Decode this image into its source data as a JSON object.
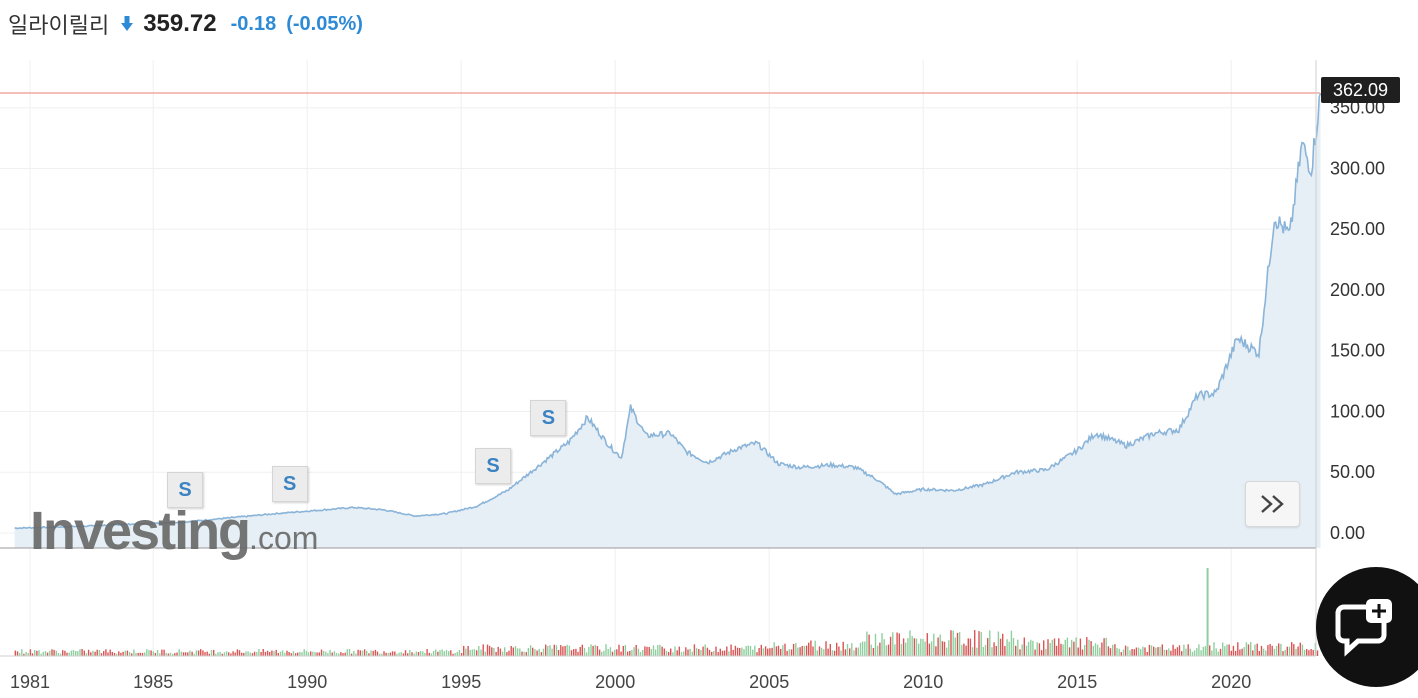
{
  "header": {
    "name": "일라이릴리",
    "price": "359.72",
    "change": "-0.18",
    "change_pct": "(-0.05%)"
  },
  "last_price_tag": "362.09",
  "watermark": {
    "brand": "Investing",
    "suffix": ".com"
  },
  "split_flags": [
    {
      "label": "S",
      "year": 1986.0
    },
    {
      "label": "S",
      "year": 1989.4
    },
    {
      "label": "S",
      "year": 1996.0
    },
    {
      "label": "S",
      "year": 1997.8
    }
  ],
  "colors": {
    "line": "#8ab4d8",
    "fill": "#e6eef6",
    "last_price_line": "#f0a8a0",
    "volume_up": "#8fcf9f",
    "volume_down": "#d95555",
    "change": "#2d8ad6"
  },
  "icons": [
    "down-arrow-icon",
    "double-chevron-right-icon",
    "chat-add-icon"
  ],
  "chart_data": {
    "type": "area",
    "x_ticks": [
      "1981",
      "1985",
      "1990",
      "1995",
      "2000",
      "2005",
      "2010",
      "2015",
      "2020"
    ],
    "y_ticks": [
      "0.00",
      "50.00",
      "100.00",
      "150.00",
      "200.00",
      "250.00",
      "300.00",
      "350.00"
    ],
    "ylim": [
      0,
      362.09
    ],
    "xlim": [
      1980.5,
      2022.9
    ],
    "grid": true,
    "last_price": 362.09,
    "price_series": [
      [
        1980.5,
        4
      ],
      [
        1982,
        5
      ],
      [
        1984,
        7
      ],
      [
        1986,
        9
      ],
      [
        1987.7,
        13
      ],
      [
        1989,
        16
      ],
      [
        1990,
        18
      ],
      [
        1991.5,
        21
      ],
      [
        1992.5,
        19
      ],
      [
        1993.5,
        14
      ],
      [
        1994.5,
        16
      ],
      [
        1995.5,
        22
      ],
      [
        1996.5,
        35
      ],
      [
        1997.5,
        55
      ],
      [
        1998.5,
        75
      ],
      [
        1999.1,
        95
      ],
      [
        1999.8,
        72
      ],
      [
        2000.2,
        62
      ],
      [
        2000.5,
        103
      ],
      [
        2001,
        80
      ],
      [
        2001.8,
        82
      ],
      [
        2002.3,
        67
      ],
      [
        2003,
        58
      ],
      [
        2004,
        70
      ],
      [
        2004.6,
        74
      ],
      [
        2005.3,
        57
      ],
      [
        2006,
        54
      ],
      [
        2007,
        56
      ],
      [
        2007.8,
        54
      ],
      [
        2008.5,
        44
      ],
      [
        2009.1,
        32
      ],
      [
        2010,
        36
      ],
      [
        2011,
        35
      ],
      [
        2012,
        40
      ],
      [
        2013,
        50
      ],
      [
        2014,
        52
      ],
      [
        2015,
        68
      ],
      [
        2015.6,
        82
      ],
      [
        2016.6,
        72
      ],
      [
        2017.5,
        82
      ],
      [
        2018.3,
        85
      ],
      [
        2018.9,
        113
      ],
      [
        2019.5,
        115
      ],
      [
        2020.2,
        160
      ],
      [
        2020.9,
        148
      ],
      [
        2021.4,
        260
      ],
      [
        2021.9,
        245
      ],
      [
        2022.3,
        320
      ],
      [
        2022.6,
        300
      ],
      [
        2022.9,
        362
      ]
    ],
    "volume_note": "relative volume per period, 0-1",
    "volume_spike": {
      "year": 2019.2,
      "value": 1.0
    }
  }
}
